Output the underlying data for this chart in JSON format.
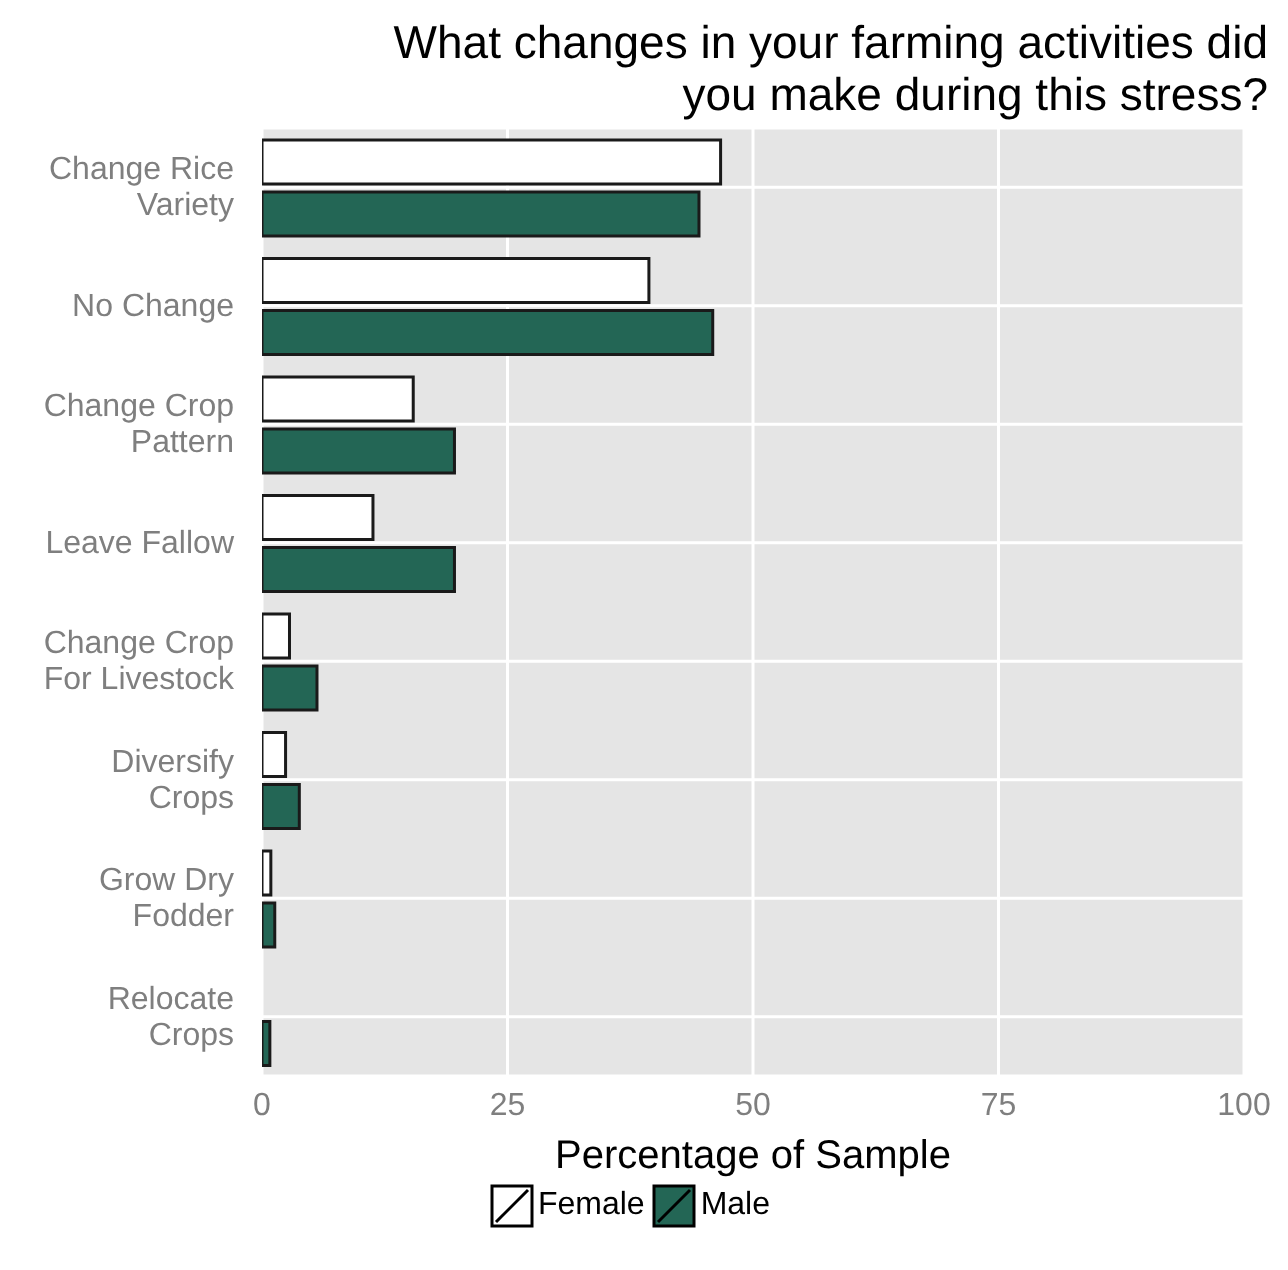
{
  "chart_data": {
    "type": "bar",
    "orientation": "horizontal",
    "title": "What changes in your farming activities did you make during this stress?",
    "xlabel": "Percentage of Sample",
    "categories": [
      "Change Rice Variety",
      "No Change",
      "Change Crop Pattern",
      "Leave Fallow",
      "Change Crop For Livestock",
      "Diversify Crops",
      "Grow Dry Fodder",
      "Relocate Crops"
    ],
    "series": [
      {
        "name": "Female",
        "color": "#ffffff",
        "values": [
          46.7,
          39.4,
          15.4,
          11.3,
          2.8,
          2.4,
          0.9,
          0
        ]
      },
      {
        "name": "Male",
        "color": "#236655",
        "values": [
          44.5,
          45.9,
          19.6,
          19.6,
          5.6,
          3.8,
          1.3,
          0.8
        ]
      }
    ],
    "xlim": [
      0,
      100
    ],
    "xticks": [
      0,
      25,
      50,
      75,
      100
    ],
    "grid": true,
    "legend": "bottom"
  }
}
